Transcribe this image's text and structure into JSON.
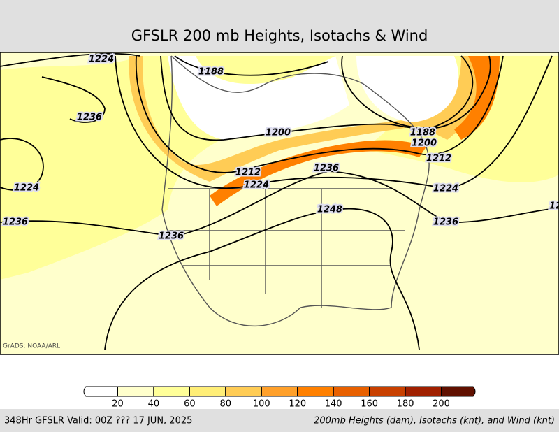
{
  "header": {
    "title": "GFSLR 200 mb Heights, Isotachs & Wind"
  },
  "map": {
    "credit": "GrADS: NOAA/ARL",
    "contour_labels": [
      "1224",
      "1188",
      "1236",
      "1200",
      "1188",
      "1200",
      "1212",
      "1212",
      "1236",
      "1224",
      "1224",
      "1224",
      "1248",
      "1236",
      "1236",
      "1236",
      "12"
    ]
  },
  "colorbar": {
    "ticks": [
      20,
      40,
      60,
      80,
      100,
      120,
      140,
      160,
      180,
      200
    ],
    "colors": [
      "#ffffff",
      "#ffffcc",
      "#ffff99",
      "#ffee77",
      "#ffcc55",
      "#ffa02a",
      "#ff8000",
      "#e86000",
      "#c84000",
      "#a02000",
      "#601000"
    ]
  },
  "footer": {
    "left": "348Hr GFSLR Valid: 00Z ??? 17 JUN, 2025",
    "right": "200mb Heights (dam), Isotachs (knt), and Wind (knt)"
  }
}
